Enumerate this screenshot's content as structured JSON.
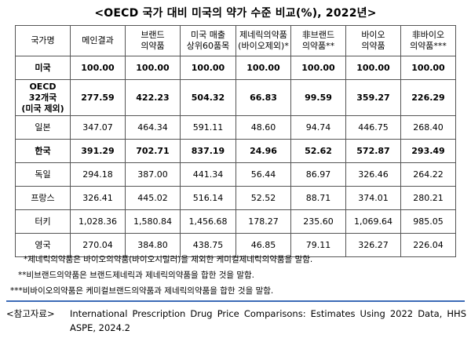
{
  "title": "<OECD 국가 대비 미국의 약가 수준 비교(%), 2022년>",
  "table": {
    "headers": [
      [
        "국가명"
      ],
      [
        "메인결과"
      ],
      [
        "브랜드",
        "의약품"
      ],
      [
        "미국 매출",
        "상위60품목"
      ],
      [
        "제네릭의약품",
        "(바이오제외)*"
      ],
      [
        "非브랜드",
        "의약품**"
      ],
      [
        "바이오",
        "의약품"
      ],
      [
        "非바이오",
        "의약품***"
      ]
    ],
    "rows": [
      {
        "country": [
          "미국"
        ],
        "values": [
          "100.00",
          "100.00",
          "100.00",
          "100.00",
          "100.00",
          "100.00",
          "100.00"
        ]
      },
      {
        "country": [
          "OECD",
          "32개국",
          "(미국 제외)"
        ],
        "values": [
          "277.59",
          "422.23",
          "504.32",
          "66.83",
          "99.59",
          "359.27",
          "226.29"
        ]
      },
      {
        "country": [
          "일본"
        ],
        "values": [
          "347.07",
          "464.34",
          "591.11",
          "48.60",
          "94.74",
          "446.75",
          "268.40"
        ]
      },
      {
        "country": [
          "한국"
        ],
        "values": [
          "391.29",
          "702.71",
          "837.19",
          "24.96",
          "52.62",
          "572.87",
          "293.49"
        ]
      },
      {
        "country": [
          "독일"
        ],
        "values": [
          "294.18",
          "387.00",
          "441.34",
          "56.44",
          "86.97",
          "326.46",
          "264.22"
        ]
      },
      {
        "country": [
          "프랑스"
        ],
        "values": [
          "326.41",
          "445.02",
          "516.14",
          "52.52",
          "88.71",
          "374.01",
          "280.21"
        ]
      },
      {
        "country": [
          "터키"
        ],
        "values": [
          "1,028.36",
          "1,580.84",
          "1,456.68",
          "178.27",
          "235.60",
          "1,069.64",
          "985.05"
        ]
      },
      {
        "country": [
          "영국"
        ],
        "values": [
          "270.04",
          "384.80",
          "438.75",
          "46.85",
          "79.11",
          "326.27",
          "226.04"
        ]
      }
    ]
  },
  "notes": [
    "*제네릭의약품은 바이오의약품(바이오시밀러)을 제외한 케미컬제네릭의약품을 말함.",
    "**비브랜드의약품은 브랜드제네릭과 제네릭의약품을 합한 것을 말함.",
    "***비바이오의약품은 케미컬브랜드의약품과 제네릭의약품을 합한 것을 말함."
  ],
  "reference": {
    "label": "<참고자료>",
    "text": "International Prescription Drug Price Comparisons: Estimates Using 2022 Data, HHS ASPE, 2024.2"
  },
  "colors": {
    "divider": "#3c6bb7",
    "border": "#555555"
  }
}
